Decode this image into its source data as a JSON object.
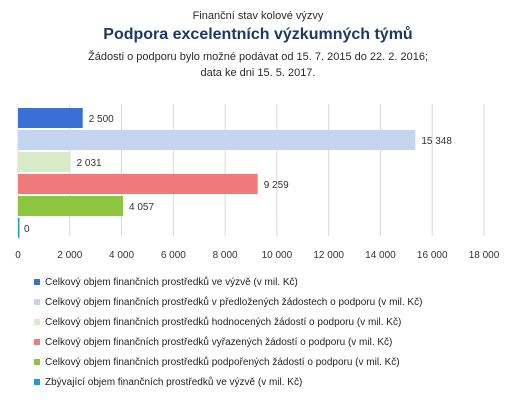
{
  "chart_data": {
    "type": "bar",
    "orientation": "horizontal",
    "supertitle": "Finanční stav kolové výzvy",
    "title": "Podpora excelentních výzkumných týmů",
    "subtitle_line1": "Žádosti o podporu bylo možné  podávat od 15. 7. 2015 do 22. 2. 2016;",
    "subtitle_line2": "data ke  dni 15. 5. 2017.",
    "xlim": [
      0,
      18000
    ],
    "xticks": [
      0,
      2000,
      4000,
      6000,
      8000,
      10000,
      12000,
      14000,
      16000,
      18000
    ],
    "xtick_labels": [
      "0",
      "2 000",
      "4 000",
      "6 000",
      "8 000",
      "10 000",
      "12 000",
      "14 000",
      "16 000",
      "18 000"
    ],
    "grid": "vertical",
    "legend_position": "bottom",
    "series": [
      {
        "name": "Celkový objem finančních prostředků ve výzvě (v mil. Kč)",
        "value": 2500,
        "label": "2 500",
        "color": "#3a6fd6"
      },
      {
        "name": "Celkový objem finančních prostředků v předložených žádostech o podporu (v mil. Kč)",
        "value": 15348,
        "label": "15 348",
        "color": "#c5d5f0"
      },
      {
        "name": "Celkový objem finančních prostředků hodnocených žádostí o podporu (v mil. Kč)",
        "value": 2031,
        "label": "2 031",
        "color": "#d7ebc9"
      },
      {
        "name": "Celkový objem finančních prostředků vyřazených žádostí o podporu (v mil. Kč)",
        "value": 9259,
        "label": "9 259",
        "color": "#f07a7a"
      },
      {
        "name": "Celkový objem finančních prostředků podpořených žádostí o podporu (v mil. Kč)",
        "value": 4057,
        "label": "4 057",
        "color": "#8cc63f"
      },
      {
        "name": "Zbývající objem finančních prostředků ve výzvě (v mil. Kč)",
        "value": 0,
        "label": "0",
        "color": "#1f9bd1"
      }
    ]
  }
}
